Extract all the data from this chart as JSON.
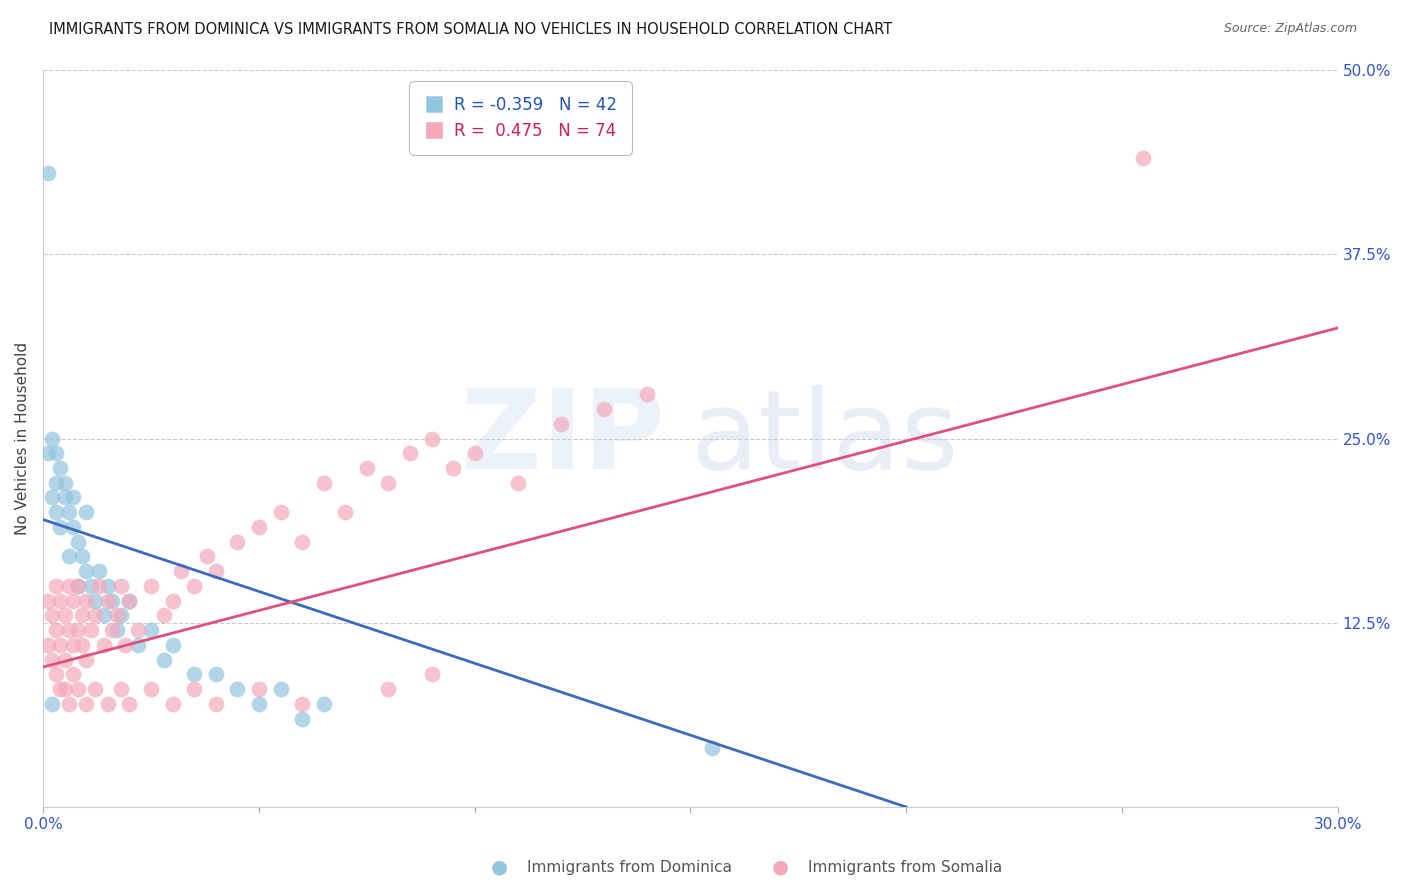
{
  "title": "IMMIGRANTS FROM DOMINICA VS IMMIGRANTS FROM SOMALIA NO VEHICLES IN HOUSEHOLD CORRELATION CHART",
  "source": "Source: ZipAtlas.com",
  "xlabel_dominica": "Immigrants from Dominica",
  "xlabel_somalia": "Immigrants from Somalia",
  "ylabel": "No Vehicles in Household",
  "r_dominica": -0.359,
  "n_dominica": 42,
  "r_somalia": 0.475,
  "n_somalia": 74,
  "color_dominica": "#92c5de",
  "color_dominica_line": "#3a6bbf",
  "color_somalia": "#f4a9bb",
  "color_somalia_line": "#e05080",
  "xmin": 0.0,
  "xmax": 0.3,
  "ymin": 0.0,
  "ymax": 0.5,
  "yticks": [
    0.0,
    0.125,
    0.25,
    0.375,
    0.5
  ],
  "ytick_labels_right": [
    "",
    "12.5%",
    "25.0%",
    "37.5%",
    "50.0%"
  ],
  "xticks": [
    0.0,
    0.05,
    0.1,
    0.15,
    0.2,
    0.25,
    0.3
  ],
  "xtick_labels": [
    "0.0%",
    "",
    "",
    "",
    "",
    "",
    "30.0%"
  ],
  "dominica_x": [
    0.001,
    0.001,
    0.002,
    0.002,
    0.003,
    0.003,
    0.003,
    0.004,
    0.004,
    0.005,
    0.005,
    0.006,
    0.006,
    0.007,
    0.007,
    0.008,
    0.008,
    0.009,
    0.01,
    0.01,
    0.011,
    0.012,
    0.013,
    0.014,
    0.015,
    0.016,
    0.017,
    0.018,
    0.02,
    0.022,
    0.025,
    0.028,
    0.03,
    0.035,
    0.04,
    0.045,
    0.05,
    0.055,
    0.06,
    0.065,
    0.155,
    0.002
  ],
  "dominica_y": [
    0.43,
    0.24,
    0.25,
    0.21,
    0.22,
    0.2,
    0.24,
    0.19,
    0.23,
    0.21,
    0.22,
    0.2,
    0.17,
    0.19,
    0.21,
    0.18,
    0.15,
    0.17,
    0.16,
    0.2,
    0.15,
    0.14,
    0.16,
    0.13,
    0.15,
    0.14,
    0.12,
    0.13,
    0.14,
    0.11,
    0.12,
    0.1,
    0.11,
    0.09,
    0.09,
    0.08,
    0.07,
    0.08,
    0.06,
    0.07,
    0.04,
    0.07
  ],
  "somalia_x": [
    0.001,
    0.001,
    0.002,
    0.002,
    0.003,
    0.003,
    0.004,
    0.004,
    0.005,
    0.005,
    0.006,
    0.006,
    0.007,
    0.007,
    0.008,
    0.008,
    0.009,
    0.009,
    0.01,
    0.01,
    0.011,
    0.012,
    0.013,
    0.014,
    0.015,
    0.016,
    0.017,
    0.018,
    0.019,
    0.02,
    0.022,
    0.025,
    0.028,
    0.03,
    0.032,
    0.035,
    0.038,
    0.04,
    0.045,
    0.05,
    0.055,
    0.06,
    0.065,
    0.07,
    0.075,
    0.08,
    0.085,
    0.09,
    0.095,
    0.1,
    0.11,
    0.12,
    0.13,
    0.14,
    0.08,
    0.09,
    0.003,
    0.004,
    0.005,
    0.006,
    0.007,
    0.008,
    0.01,
    0.012,
    0.015,
    0.018,
    0.02,
    0.025,
    0.03,
    0.035,
    0.04,
    0.05,
    0.06,
    0.255
  ],
  "somalia_y": [
    0.11,
    0.14,
    0.1,
    0.13,
    0.12,
    0.15,
    0.11,
    0.14,
    0.1,
    0.13,
    0.12,
    0.15,
    0.11,
    0.14,
    0.12,
    0.15,
    0.11,
    0.13,
    0.1,
    0.14,
    0.12,
    0.13,
    0.15,
    0.11,
    0.14,
    0.12,
    0.13,
    0.15,
    0.11,
    0.14,
    0.12,
    0.15,
    0.13,
    0.14,
    0.16,
    0.15,
    0.17,
    0.16,
    0.18,
    0.19,
    0.2,
    0.18,
    0.22,
    0.2,
    0.23,
    0.22,
    0.24,
    0.25,
    0.23,
    0.24,
    0.22,
    0.26,
    0.27,
    0.28,
    0.08,
    0.09,
    0.09,
    0.08,
    0.08,
    0.07,
    0.09,
    0.08,
    0.07,
    0.08,
    0.07,
    0.08,
    0.07,
    0.08,
    0.07,
    0.08,
    0.07,
    0.08,
    0.07,
    0.44
  ],
  "dom_line_x": [
    0.0,
    0.2
  ],
  "dom_line_y": [
    0.195,
    0.0
  ],
  "som_line_x": [
    0.0,
    0.3
  ],
  "som_line_y": [
    0.095,
    0.325
  ]
}
